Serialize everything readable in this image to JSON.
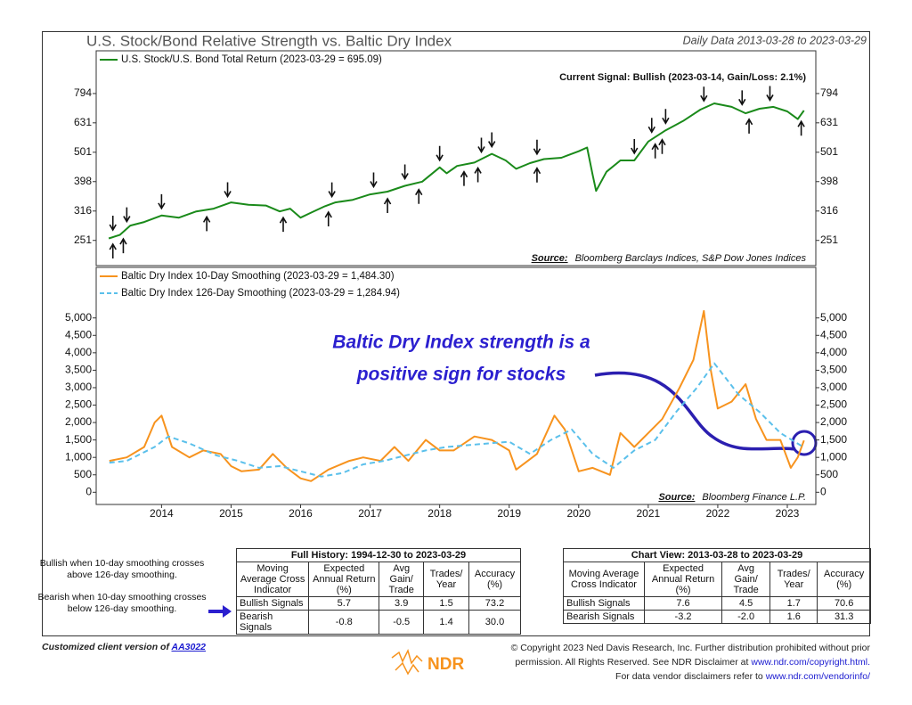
{
  "header": {
    "title": "U.S. Stock/Bond Relative Strength vs. Baltic Dry Index",
    "subtitle": "Daily Data 2013-03-28 to 2023-03-29"
  },
  "chart_data": [
    {
      "type": "line",
      "log_scale": true,
      "signal_text": "Current Signal: Bullish (2023-03-14, Gain/Loss: 2.1%)",
      "source_label": "Source:",
      "source": "Bloomberg Barclays Indices, S&P Dow Jones Indices",
      "xlim": [
        2013.06,
        2023.41
      ],
      "ylim": [
        206,
        1110
      ],
      "yticks": [
        251,
        316,
        398,
        501,
        631,
        794
      ],
      "series": [
        {
          "name": "U.S. Stock/U.S. Bond Total Return (2023-03-29 = 695.09)",
          "color": "#1a8a1a",
          "x": [
            2013.24,
            2013.4,
            2013.55,
            2013.75,
            2014.0,
            2014.25,
            2014.5,
            2014.75,
            2015.0,
            2015.25,
            2015.5,
            2015.7,
            2015.85,
            2016.0,
            2016.15,
            2016.35,
            2016.5,
            2016.75,
            2017.0,
            2017.25,
            2017.5,
            2017.75,
            2018.0,
            2018.1,
            2018.25,
            2018.5,
            2018.75,
            2018.95,
            2019.1,
            2019.3,
            2019.5,
            2019.75,
            2020.0,
            2020.12,
            2020.2,
            2020.25,
            2020.4,
            2020.6,
            2020.8,
            2021.0,
            2021.25,
            2021.5,
            2021.75,
            2021.95,
            2022.2,
            2022.4,
            2022.6,
            2022.8,
            2023.0,
            2023.15,
            2023.24
          ],
          "values": [
            255,
            262,
            282,
            290,
            305,
            300,
            315,
            322,
            338,
            332,
            330,
            315,
            322,
            300,
            312,
            328,
            338,
            345,
            360,
            368,
            385,
            398,
            445,
            425,
            450,
            462,
            495,
            470,
            440,
            460,
            475,
            480,
            505,
            520,
            420,
            370,
            430,
            470,
            470,
            545,
            595,
            640,
            700,
            735,
            715,
            680,
            705,
            715,
            690,
            650,
            695.09
          ]
        }
      ],
      "bullish_signals": [
        2013.3,
        2013.45,
        2014.65,
        2015.75,
        2016.4,
        2017.25,
        2017.7,
        2018.35,
        2018.55,
        2019.4,
        2021.1,
        2021.2,
        2022.45,
        2023.2
      ],
      "bearish_signals": [
        2013.3,
        2013.5,
        2014.0,
        2014.95,
        2016.45,
        2017.05,
        2017.5,
        2018.0,
        2018.6,
        2018.75,
        2019.4,
        2020.8,
        2021.05,
        2021.25,
        2021.8,
        2022.35,
        2022.75
      ]
    },
    {
      "type": "line",
      "log_scale": false,
      "annotation_lines": [
        "Baltic Dry Index strength is a",
        "positive sign for stocks"
      ],
      "source_label": "Source:",
      "source": "Bloomberg Finance L.P.",
      "xlim": [
        2013.06,
        2023.41
      ],
      "xticks": [
        2014,
        2015,
        2016,
        2017,
        2018,
        2019,
        2020,
        2021,
        2022,
        2023
      ],
      "ylim": [
        -350,
        6450
      ],
      "yticks": [
        0,
        500,
        {
          "value": 1000,
          "label": "1,000"
        },
        {
          "value": 1500,
          "label": "1,500"
        },
        {
          "value": 2000,
          "label": "2,000"
        },
        {
          "value": 2500,
          "label": "2,500"
        },
        {
          "value": 3000,
          "label": "3,000"
        },
        {
          "value": 3500,
          "label": "3,500"
        },
        {
          "value": 4000,
          "label": "4,000"
        },
        {
          "value": 4500,
          "label": "4,500"
        },
        {
          "value": 5000,
          "label": "5,000"
        }
      ],
      "series": [
        {
          "name": "Baltic Dry Index 10-Day Smoothing (2023-03-29 = 1,484.30)",
          "color": "#f7931e",
          "dashed": false,
          "x": [
            2013.25,
            2013.5,
            2013.75,
            2013.9,
            2014.0,
            2014.15,
            2014.4,
            2014.6,
            2014.85,
            2015.0,
            2015.15,
            2015.4,
            2015.6,
            2015.8,
            2016.0,
            2016.15,
            2016.4,
            2016.7,
            2016.9,
            2017.15,
            2017.35,
            2017.55,
            2017.8,
            2018.0,
            2018.2,
            2018.5,
            2018.75,
            2019.0,
            2019.1,
            2019.4,
            2019.65,
            2019.8,
            2020.0,
            2020.2,
            2020.45,
            2020.6,
            2020.8,
            2021.0,
            2021.2,
            2021.45,
            2021.65,
            2021.8,
            2021.9,
            2022.0,
            2022.2,
            2022.4,
            2022.55,
            2022.7,
            2022.9,
            2023.05,
            2023.15,
            2023.24
          ],
          "values": [
            900,
            1000,
            1300,
            2000,
            2200,
            1300,
            1000,
            1200,
            1100,
            750,
            600,
            650,
            1100,
            700,
            400,
            320,
            650,
            900,
            1000,
            900,
            1300,
            900,
            1500,
            1200,
            1200,
            1600,
            1500,
            1200,
            650,
            1100,
            2200,
            1800,
            600,
            700,
            500,
            1700,
            1300,
            1700,
            2100,
            3000,
            3800,
            5200,
            3500,
            2400,
            2600,
            3100,
            2100,
            1500,
            1500,
            700,
            1000,
            1484.3
          ]
        },
        {
          "name": "Baltic Dry Index 126-Day Smoothing (2023-03-29 = 1,284.94)",
          "color": "#5bc0eb",
          "dashed": true,
          "x": [
            2013.25,
            2013.5,
            2013.9,
            2014.1,
            2014.4,
            2014.8,
            2015.1,
            2015.4,
            2015.7,
            2016.0,
            2016.3,
            2016.6,
            2016.9,
            2017.2,
            2017.5,
            2017.8,
            2018.1,
            2018.4,
            2018.7,
            2019.0,
            2019.3,
            2019.6,
            2019.9,
            2020.2,
            2020.5,
            2020.8,
            2021.1,
            2021.4,
            2021.7,
            2021.95,
            2022.3,
            2022.6,
            2022.9,
            2023.24
          ],
          "values": [
            850,
            900,
            1300,
            1600,
            1400,
            1050,
            900,
            700,
            750,
            600,
            450,
            550,
            800,
            900,
            1050,
            1200,
            1300,
            1350,
            1400,
            1450,
            1100,
            1500,
            1800,
            1100,
            700,
            1200,
            1500,
            2300,
            3000,
            3700,
            2800,
            2300,
            1700,
            1284.94
          ]
        }
      ]
    }
  ],
  "notes": {
    "bullish": "Bullish when 10-day smoothing crosses above 126-day smoothing.",
    "bearish": "Bearish when 10-day smoothing crosses below 126-day smoothing."
  },
  "tables": [
    {
      "title": "Full History: 1994-12-30 to 2023-03-29",
      "header": [
        "Moving Average Cross Indicator",
        "Expected Annual Return (%)",
        "Avg Gain/ Trade",
        "Trades/ Year",
        "Accuracy (%)"
      ],
      "rows": [
        [
          "Bullish Signals",
          "5.7",
          "3.9",
          "1.5",
          "73.2"
        ],
        [
          "Bearish Signals",
          "-0.8",
          "-0.5",
          "1.4",
          "30.0"
        ]
      ]
    },
    {
      "title": "Chart View: 2013-03-28 to 2023-03-29",
      "header": [
        "Moving Average Cross Indicator",
        "Expected Annual Return (%)",
        "Avg Gain/ Trade",
        "Trades/ Year",
        "Accuracy (%)"
      ],
      "rows": [
        [
          "Bullish Signals",
          "7.6",
          "4.5",
          "1.7",
          "70.6"
        ],
        [
          "Bearish Signals",
          "-3.2",
          "-2.0",
          "1.6",
          "31.3"
        ]
      ]
    }
  ],
  "footer": {
    "client_note": "Customized client version of",
    "client_id": "AA3022",
    "logo": "NDR",
    "copyright": [
      "© Copyright 2023 Ned Davis Research, Inc. Further distribution prohibited without prior",
      "permission. All Rights Reserved. See NDR Disclaimer at",
      "www.ndr.com/copyright.html.",
      "For data vendor disclaimers refer to",
      "www.ndr.com/vendorinfo/"
    ]
  }
}
